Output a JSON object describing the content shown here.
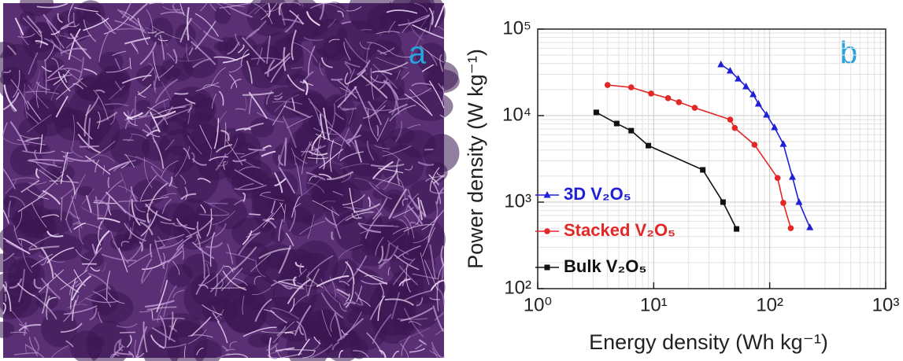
{
  "image_label": "a",
  "chart_data": {
    "type": "line",
    "panel_label": "b",
    "x_label": "Energy density (Wh kg⁻¹)",
    "y_label": "Power density (W kg⁻¹)",
    "log_x": true,
    "log_y": true,
    "grid": true,
    "legend_loc": "lower left",
    "xlim": [
      1,
      1000
    ],
    "xticks": [
      {
        "value": 1,
        "label": "10⁰"
      },
      {
        "value": 10,
        "label": "10¹"
      },
      {
        "value": 100,
        "label": "10²"
      },
      {
        "value": 1000,
        "label": "10³"
      }
    ],
    "ylim": [
      100,
      100000
    ],
    "yticks": [
      {
        "value": 100,
        "label": "10²"
      },
      {
        "value": 1000,
        "label": "10³"
      },
      {
        "value": 10000,
        "label": "10⁴"
      },
      {
        "value": 100000,
        "label": "10⁵"
      }
    ],
    "series": [
      {
        "name": "3D V₂O₅",
        "color": "#1f1fd6",
        "marker": "triangle",
        "x": [
          38,
          45.6,
          53.5,
          62.5,
          72,
          80,
          94,
          110,
          131,
          157,
          179,
          222
        ],
        "values": [
          39000,
          33000,
          26700,
          21700,
          17600,
          13700,
          10200,
          7300,
          4700,
          1950,
          1000,
          510
        ]
      },
      {
        "name": "Stacked V₂O₅",
        "color": "#e32626",
        "marker": "circle",
        "x": [
          4.0,
          6.4,
          9.5,
          13.3,
          16.5,
          22.6,
          45.7,
          50,
          74,
          117,
          131,
          152
        ],
        "values": [
          22600,
          21200,
          18000,
          15900,
          14300,
          12300,
          9000,
          7200,
          4600,
          1900,
          980,
          500
        ]
      },
      {
        "name": "Bulk V₂O₅",
        "color": "#111111",
        "marker": "square",
        "x": [
          3.2,
          4.8,
          6.4,
          9.0,
          26.5,
          39.6,
          51.8
        ],
        "values": [
          10900,
          8100,
          6700,
          4500,
          2360,
          1000,
          490
        ]
      }
    ]
  }
}
